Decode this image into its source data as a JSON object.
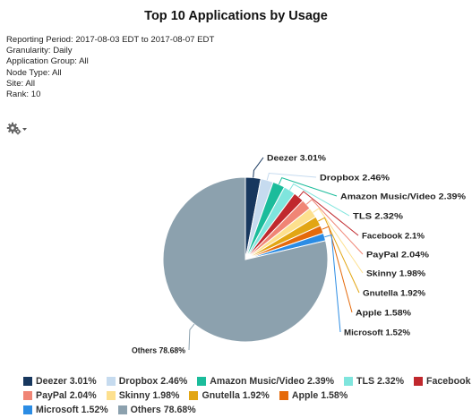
{
  "title": "Top 10 Applications by Usage",
  "meta_lines": [
    "Reporting Period: 2017-08-03 EDT to 2017-08-07 EDT",
    "Granularity: Daily",
    "Application Group: All",
    "Node Type: All",
    "Site: All",
    "Rank: 10"
  ],
  "toolbar": {
    "menu_icon": "gear-icon",
    "menu_caret": "caret-down-icon"
  },
  "chart_data": {
    "type": "pie",
    "start_angle": "12 o'clock, clockwise",
    "slices": [
      {
        "name": "Deezer",
        "value": 3.01,
        "label": "Deezer 3.01%",
        "color": "#17375e"
      },
      {
        "name": "Dropbox",
        "value": 2.46,
        "label": "Dropbox 2.46%",
        "color": "#c6dbef"
      },
      {
        "name": "Amazon Music/Video",
        "value": 2.39,
        "label": "Amazon Music/Video 2.39%",
        "color": "#1bbc9b"
      },
      {
        "name": "TLS",
        "value": 2.32,
        "label": "TLS 2.32%",
        "color": "#7fe5dd"
      },
      {
        "name": "Facebook",
        "value": 2.1,
        "label": "Facebook 2.1%",
        "color": "#c0282d"
      },
      {
        "name": "PayPal",
        "value": 2.04,
        "label": "PayPal 2.04%",
        "color": "#f08575"
      },
      {
        "name": "Skinny",
        "value": 1.98,
        "label": "Skinny 1.98%",
        "color": "#fde08e"
      },
      {
        "name": "Gnutella",
        "value": 1.92,
        "label": "Gnutella 1.92%",
        "color": "#e2a614"
      },
      {
        "name": "Apple",
        "value": 1.58,
        "label": "Apple 1.58%",
        "color": "#e56a0b"
      },
      {
        "name": "Microsoft",
        "value": 1.52,
        "label": "Microsoft 1.52%",
        "color": "#2b8ce4"
      },
      {
        "name": "Others",
        "value": 78.68,
        "label": "Others 78.68%",
        "color": "#8ca1ae"
      }
    ],
    "legend_position": "bottom"
  }
}
